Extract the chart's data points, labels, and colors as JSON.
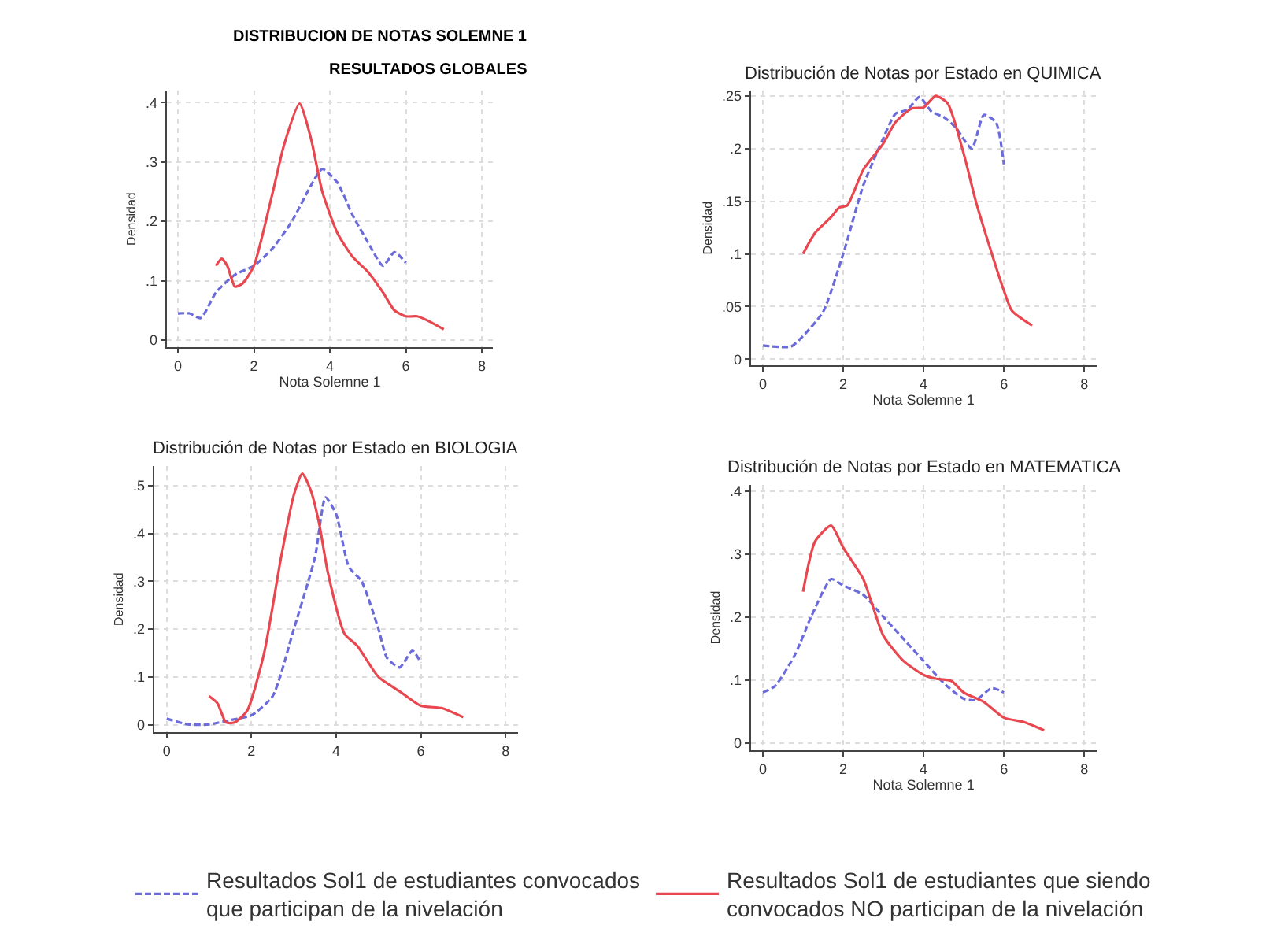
{
  "chart_data": [
    {
      "type": "line",
      "title": "DISTRIBUCION DE NOTAS SOLEMNE 1",
      "subtitle": "RESULTADOS GLOBALES",
      "xlabel": "Nota Solemne 1",
      "ylabel": "Densidad",
      "xlim": [
        -0.3,
        8.3
      ],
      "xticks": [
        0,
        2,
        4,
        6,
        8
      ],
      "ylim": [
        -0.012,
        0.42
      ],
      "yticks": [
        0,
        {
          "value": 0.1,
          "label": ".1"
        },
        {
          "value": 0.2,
          "label": ".2"
        },
        {
          "value": 0.3,
          "label": ".3"
        },
        {
          "value": 0.4,
          "label": ".4"
        }
      ],
      "grid": true,
      "legend": "bottom",
      "series": [
        {
          "name": "Resultados Sol1 de estudiantes convocados que participan de la nivelación",
          "color": "#6b6bd9",
          "line_style": "dashed",
          "x": [
            0,
            0.3,
            0.6,
            1.0,
            1.5,
            2.0,
            2.5,
            3.0,
            3.5,
            3.8,
            4.2,
            4.6,
            5.0,
            5.4,
            5.7,
            6.0
          ],
          "values": [
            0.045,
            0.045,
            0.037,
            0.08,
            0.11,
            0.125,
            0.155,
            0.2,
            0.26,
            0.288,
            0.265,
            0.21,
            0.165,
            0.125,
            0.148,
            0.13
          ]
        },
        {
          "name": "Resultados Sol1 de estudiantes que siendo convocados NO participan de la nivelación",
          "color": "#e8474f",
          "line_style": "solid",
          "x": [
            1.0,
            1.15,
            1.3,
            1.5,
            1.7,
            2.0,
            2.5,
            2.8,
            3.2,
            3.5,
            3.8,
            4.2,
            4.6,
            5.0,
            5.4,
            5.7,
            6.0,
            6.3,
            6.6,
            7.0
          ],
          "values": [
            0.125,
            0.137,
            0.125,
            0.09,
            0.095,
            0.125,
            0.25,
            0.33,
            0.398,
            0.34,
            0.25,
            0.18,
            0.14,
            0.115,
            0.08,
            0.05,
            0.04,
            0.04,
            0.032,
            0.018
          ]
        }
      ]
    },
    {
      "type": "line",
      "title": "Distribución de Notas por Estado en QUIMICA",
      "xlabel": "Nota Solemne 1",
      "ylabel": "Densidad",
      "xlim": [
        -0.3,
        8.3
      ],
      "xticks": [
        0,
        2,
        4,
        6,
        8
      ],
      "ylim": [
        -0.006,
        0.255
      ],
      "yticks": [
        0,
        {
          "value": 0.05,
          "label": ".05"
        },
        {
          "value": 0.1,
          "label": ".1"
        },
        {
          "value": 0.15,
          "label": ".15"
        },
        {
          "value": 0.2,
          "label": ".2"
        },
        {
          "value": 0.25,
          "label": ".25"
        }
      ],
      "grid": true,
      "series": [
        {
          "color": "#6b6bd9",
          "line_style": "dashed",
          "x": [
            0,
            0.7,
            1.0,
            1.5,
            2.0,
            2.5,
            3.0,
            3.3,
            3.6,
            3.9,
            4.2,
            4.5,
            4.8,
            5.2,
            5.5,
            5.8,
            6.0
          ],
          "values": [
            0.013,
            0.012,
            0.022,
            0.045,
            0.1,
            0.165,
            0.21,
            0.233,
            0.237,
            0.249,
            0.235,
            0.23,
            0.22,
            0.2,
            0.232,
            0.225,
            0.185
          ]
        },
        {
          "color": "#e8474f",
          "line_style": "solid",
          "x": [
            1.0,
            1.3,
            1.7,
            1.9,
            2.1,
            2.5,
            3.0,
            3.3,
            3.7,
            4.0,
            4.3,
            4.6,
            5.0,
            5.3,
            5.7,
            6.0,
            6.2,
            6.7
          ],
          "values": [
            0.1,
            0.12,
            0.135,
            0.144,
            0.146,
            0.18,
            0.205,
            0.225,
            0.238,
            0.239,
            0.25,
            0.243,
            0.195,
            0.15,
            0.1,
            0.065,
            0.046,
            0.032
          ]
        }
      ]
    },
    {
      "type": "line",
      "title": "Distribución de Notas por Estado en BIOLOGIA",
      "ylabel": "Densidad",
      "xlim": [
        -0.3,
        8.3
      ],
      "xticks": [
        0,
        2,
        4,
        6,
        8
      ],
      "ylim": [
        -0.015,
        0.54
      ],
      "yticks": [
        0,
        {
          "value": 0.1,
          "label": ".1"
        },
        {
          "value": 0.2,
          "label": ".2"
        },
        {
          "value": 0.3,
          "label": ".3"
        },
        {
          "value": 0.4,
          "label": ".4"
        },
        {
          "value": 0.5,
          "label": ".5"
        }
      ],
      "grid": true,
      "series": [
        {
          "color": "#6b6bd9",
          "line_style": "dashed",
          "x": [
            0,
            0.5,
            1.0,
            1.5,
            2.0,
            2.5,
            3.0,
            3.5,
            3.75,
            4.0,
            4.3,
            4.6,
            5.0,
            5.2,
            5.5,
            5.8,
            6.0
          ],
          "values": [
            0.013,
            0.001,
            0.001,
            0.01,
            0.02,
            0.06,
            0.2,
            0.35,
            0.475,
            0.44,
            0.33,
            0.3,
            0.2,
            0.14,
            0.12,
            0.155,
            0.13
          ]
        },
        {
          "color": "#e8474f",
          "line_style": "solid",
          "x": [
            1.0,
            1.2,
            1.4,
            1.6,
            1.9,
            2.3,
            2.7,
            3.0,
            3.2,
            3.4,
            3.6,
            3.8,
            4.2,
            4.5,
            5.0,
            5.5,
            6.0,
            6.5,
            7.0
          ],
          "values": [
            0.06,
            0.045,
            0.005,
            0.005,
            0.03,
            0.15,
            0.35,
            0.48,
            0.525,
            0.49,
            0.42,
            0.32,
            0.19,
            0.165,
            0.1,
            0.07,
            0.04,
            0.035,
            0.016
          ]
        }
      ]
    },
    {
      "type": "line",
      "title": "Distribución de Notas por Estado en MATEMATICA",
      "xlabel": "Nota Solemne 1",
      "ylabel": "Densidad",
      "xlim": [
        -0.3,
        8.3
      ],
      "xticks": [
        0,
        2,
        4,
        6,
        8
      ],
      "ylim": [
        -0.012,
        0.41
      ],
      "yticks": [
        0,
        {
          "value": 0.1,
          "label": ".1"
        },
        {
          "value": 0.2,
          "label": ".2"
        },
        {
          "value": 0.3,
          "label": ".3"
        },
        {
          "value": 0.4,
          "label": ".4"
        }
      ],
      "grid": true,
      "series": [
        {
          "color": "#6b6bd9",
          "line_style": "dashed",
          "x": [
            0,
            0.3,
            0.8,
            1.2,
            1.7,
            2.0,
            2.5,
            3.0,
            3.5,
            4.0,
            4.5,
            5.0,
            5.3,
            5.7,
            6.0
          ],
          "values": [
            0.08,
            0.09,
            0.14,
            0.2,
            0.26,
            0.25,
            0.235,
            0.2,
            0.165,
            0.13,
            0.095,
            0.07,
            0.068,
            0.087,
            0.08
          ]
        },
        {
          "color": "#e8474f",
          "line_style": "solid",
          "x": [
            1.0,
            1.3,
            1.7,
            2.0,
            2.5,
            3.0,
            3.5,
            4.0,
            4.3,
            4.7,
            5.0,
            5.5,
            6.0,
            6.5,
            7.0
          ],
          "values": [
            0.24,
            0.32,
            0.345,
            0.31,
            0.26,
            0.17,
            0.13,
            0.108,
            0.102,
            0.098,
            0.08,
            0.065,
            0.04,
            0.033,
            0.02
          ]
        }
      ]
    }
  ]
}
